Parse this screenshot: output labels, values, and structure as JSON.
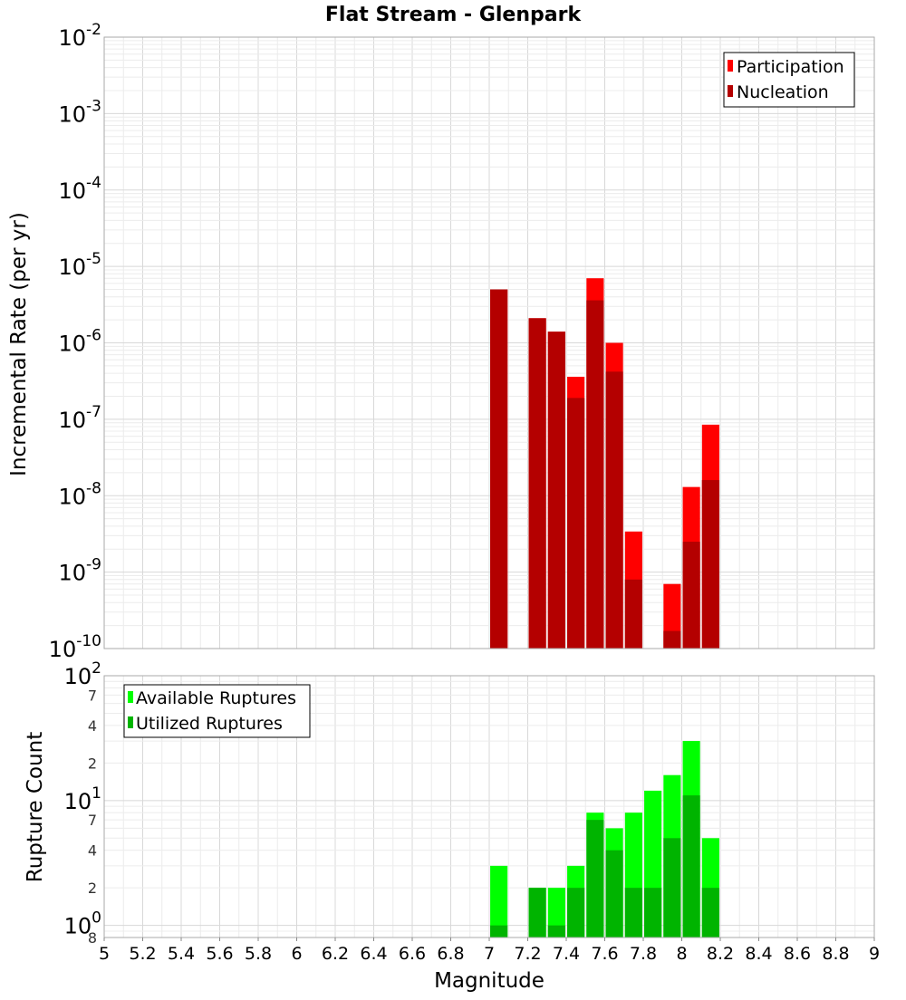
{
  "chart_data": {
    "title": "Flat Stream - Glenpark",
    "x_axis": {
      "label": "Magnitude",
      "range": [
        5,
        9
      ],
      "ticks": [
        5,
        5.2,
        5.4,
        5.6,
        5.8,
        6,
        6.2,
        6.4,
        6.6,
        6.8,
        7,
        7.2,
        7.4,
        7.6,
        7.8,
        8,
        8.2,
        8.4,
        8.6,
        8.8,
        9
      ],
      "tick_labels": [
        "5",
        "5.2",
        "5.4",
        "5.6",
        "5.8",
        "6",
        "6.2",
        "6.4",
        "6.6",
        "6.8",
        "7",
        "7.2",
        "7.4",
        "7.6",
        "7.8",
        "8",
        "8.2",
        "8.4",
        "8.6",
        "8.8",
        "9"
      ]
    },
    "panels": [
      {
        "type": "bar",
        "scale": "log",
        "ylabel": "Incremental Rate (per yr)",
        "ylim": [
          1e-10,
          0.01
        ],
        "grid": true,
        "legend_position": "top-right",
        "decade_ticks": [
          {
            "value": 1e-10,
            "base": "10",
            "exp": "-10"
          },
          {
            "value": 1e-09,
            "base": "10",
            "exp": "-9"
          },
          {
            "value": 1e-08,
            "base": "10",
            "exp": "-8"
          },
          {
            "value": 1e-07,
            "base": "10",
            "exp": "-7"
          },
          {
            "value": 1e-06,
            "base": "10",
            "exp": "-6"
          },
          {
            "value": 1e-05,
            "base": "10",
            "exp": "-5"
          },
          {
            "value": 0.0001,
            "base": "10",
            "exp": "-4"
          },
          {
            "value": 0.001,
            "base": "10",
            "exp": "-3"
          },
          {
            "value": 0.01,
            "base": "10",
            "exp": "-2"
          }
        ],
        "minor_tick_labels": [],
        "bar_width": 0.09,
        "series": [
          {
            "name": "Participation",
            "color": "#ff0000",
            "x": [
              7.05,
              7.25,
              7.35,
              7.45,
              7.55,
              7.65,
              7.75,
              7.95,
              8.05,
              8.15
            ],
            "values": [
              5e-06,
              2.1e-06,
              1.4e-06,
              3.6e-07,
              7e-06,
              1e-06,
              3.4e-09,
              7e-10,
              1.3e-08,
              8.5e-08
            ]
          },
          {
            "name": "Nucleation",
            "color": "#b40000",
            "x": [
              7.05,
              7.25,
              7.35,
              7.45,
              7.55,
              7.65,
              7.75,
              7.95,
              8.05,
              8.15
            ],
            "values": [
              5e-06,
              2.1e-06,
              1.4e-06,
              1.9e-07,
              3.6e-06,
              4.2e-07,
              8e-10,
              1.7e-10,
              2.5e-09,
              1.6e-08
            ]
          }
        ]
      },
      {
        "type": "bar",
        "scale": "log",
        "ylabel": "Rupture Count",
        "ylim": [
          0.8,
          100
        ],
        "grid": true,
        "legend_position": "top-left",
        "decade_ticks": [
          {
            "value": 1,
            "base": "10",
            "exp": "0"
          },
          {
            "value": 10,
            "base": "10",
            "exp": "1"
          },
          {
            "value": 100,
            "base": "10",
            "exp": "2"
          }
        ],
        "minor_tick_labels": [
          {
            "value": 0.8,
            "label": "8"
          },
          {
            "value": 2,
            "label": "2"
          },
          {
            "value": 4,
            "label": "4"
          },
          {
            "value": 7,
            "label": "7"
          },
          {
            "value": 20,
            "label": "2"
          },
          {
            "value": 40,
            "label": "4"
          },
          {
            "value": 70,
            "label": "7"
          }
        ],
        "bar_width": 0.09,
        "series": [
          {
            "name": "Available Ruptures",
            "color": "#00ff00",
            "x": [
              7.05,
              7.25,
              7.35,
              7.45,
              7.55,
              7.65,
              7.75,
              7.85,
              7.95,
              8.05,
              8.15
            ],
            "values": [
              3,
              2,
              2,
              3,
              8,
              6,
              8,
              12,
              16,
              30,
              5
            ]
          },
          {
            "name": "Utilized Ruptures",
            "color": "#00b400",
            "x": [
              7.05,
              7.25,
              7.35,
              7.45,
              7.55,
              7.65,
              7.75,
              7.85,
              7.95,
              8.05,
              8.15
            ],
            "values": [
              1,
              2,
              1,
              2,
              7,
              4,
              2,
              2,
              5,
              11,
              2
            ]
          }
        ]
      }
    ]
  }
}
